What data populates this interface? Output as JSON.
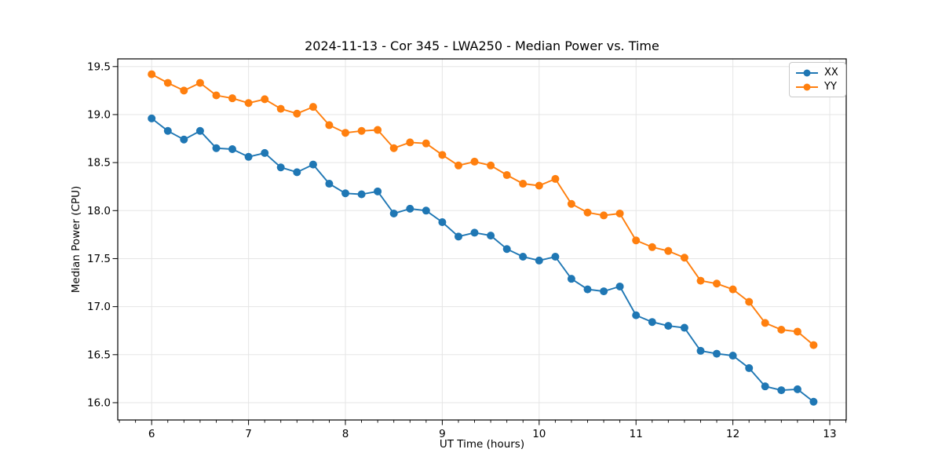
{
  "window": {
    "background": "#ffffff"
  },
  "chart_data": {
    "type": "line",
    "title": "2024-11-13 - Cor 345 - LWA250 - Median Power vs. Time",
    "xlabel": "UT Time (hours)",
    "ylabel": "Median Power (CPU)",
    "xlim": [
      5.65,
      13.17
    ],
    "ylim": [
      15.82,
      19.58
    ],
    "xticks": [
      6,
      7,
      8,
      9,
      10,
      11,
      12,
      13
    ],
    "yticks": [
      16.0,
      16.5,
      17.0,
      17.5,
      18.0,
      18.5,
      19.0,
      19.5
    ],
    "x_minor_step": 0.1666667,
    "grid": "major",
    "grid_color": "#e5e5e5",
    "spine_color": "#000000",
    "legend_position": "upper right",
    "x": [
      6.0,
      6.167,
      6.333,
      6.5,
      6.667,
      6.833,
      7.0,
      7.167,
      7.333,
      7.5,
      7.667,
      7.833,
      8.0,
      8.167,
      8.333,
      8.5,
      8.667,
      8.833,
      9.0,
      9.167,
      9.333,
      9.5,
      9.667,
      9.833,
      10.0,
      10.167,
      10.333,
      10.5,
      10.667,
      10.833,
      11.0,
      11.167,
      11.333,
      11.5,
      11.667,
      11.833,
      12.0,
      12.167,
      12.333,
      12.5,
      12.667,
      12.833
    ],
    "series": [
      {
        "name": "XX",
        "color": "#1f77b4",
        "values": [
          18.96,
          18.83,
          18.74,
          18.83,
          18.65,
          18.64,
          18.56,
          18.6,
          18.45,
          18.4,
          18.48,
          18.28,
          18.18,
          18.17,
          18.2,
          17.97,
          18.02,
          18.0,
          17.88,
          17.73,
          17.77,
          17.74,
          17.6,
          17.52,
          17.48,
          17.52,
          17.29,
          17.18,
          17.16,
          17.21,
          16.91,
          16.84,
          16.8,
          16.78,
          16.54,
          16.51,
          16.49,
          16.36,
          16.17,
          16.13,
          16.14,
          16.01
        ]
      },
      {
        "name": "YY",
        "color": "#ff7f0e",
        "values": [
          19.42,
          19.33,
          19.25,
          19.33,
          19.2,
          19.17,
          19.12,
          19.16,
          19.06,
          19.01,
          19.08,
          18.89,
          18.81,
          18.83,
          18.84,
          18.65,
          18.71,
          18.7,
          18.58,
          18.47,
          18.51,
          18.47,
          18.37,
          18.28,
          18.26,
          18.33,
          18.07,
          17.98,
          17.95,
          17.97,
          17.69,
          17.62,
          17.58,
          17.51,
          17.27,
          17.24,
          17.18,
          17.05,
          16.83,
          16.76,
          16.74,
          16.6
        ]
      }
    ]
  }
}
